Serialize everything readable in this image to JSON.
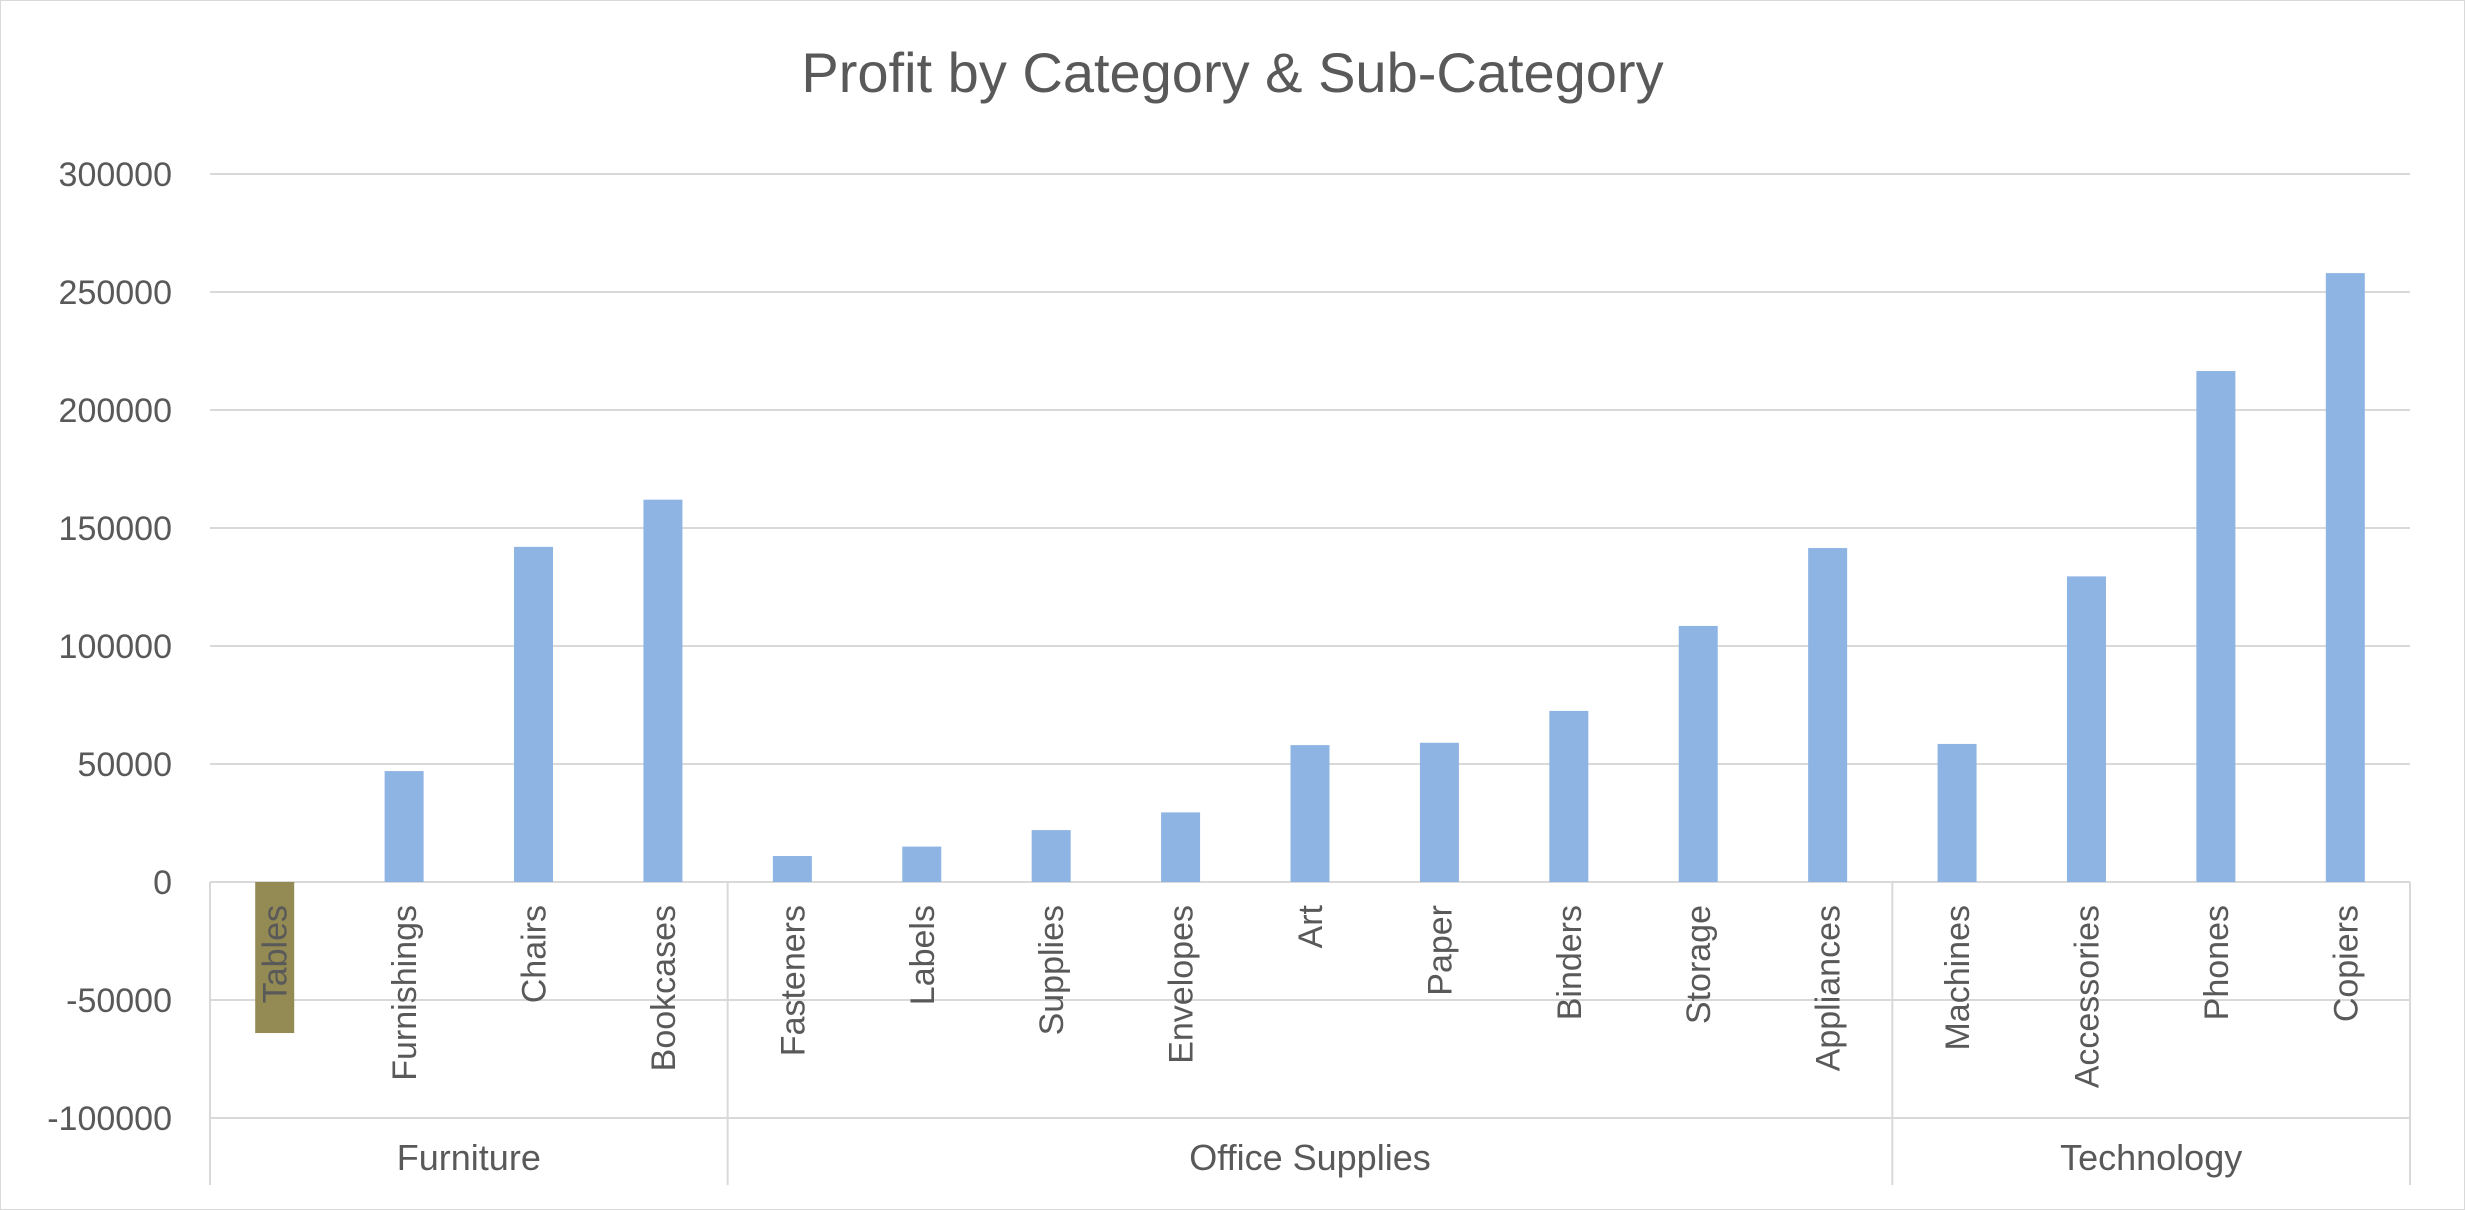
{
  "chart_data": {
    "type": "bar",
    "title": "Profit by Category & Sub-Category",
    "xlabel": "",
    "ylabel": "",
    "ylim": [
      -100000,
      300000
    ],
    "yticks": [
      300000,
      250000,
      200000,
      150000,
      100000,
      50000,
      0,
      -50000,
      -100000
    ],
    "grid": true,
    "legend": "none",
    "groups": [
      {
        "name": "Furniture",
        "categories": [
          "Tables",
          "Furnishings",
          "Chairs",
          "Bookcases"
        ]
      },
      {
        "name": "Office Supplies",
        "categories": [
          "Fasteners",
          "Labels",
          "Supplies",
          "Envelopes",
          "Art",
          "Paper",
          "Binders",
          "Storage",
          "Appliances"
        ]
      },
      {
        "name": "Technology",
        "categories": [
          "Machines",
          "Accessories",
          "Phones",
          "Copiers"
        ]
      }
    ],
    "categories": [
      "Tables",
      "Furnishings",
      "Chairs",
      "Bookcases",
      "Fasteners",
      "Labels",
      "Supplies",
      "Envelopes",
      "Art",
      "Paper",
      "Binders",
      "Storage",
      "Appliances",
      "Machines",
      "Accessories",
      "Phones",
      "Copiers"
    ],
    "values": [
      -64000,
      47000,
      142000,
      162000,
      11000,
      15000,
      22000,
      29500,
      58000,
      59000,
      72500,
      108500,
      141500,
      58500,
      129500,
      216500,
      258000
    ],
    "colors": {
      "positive": "#8eb4e3",
      "negative": "#948a54",
      "gridline": "#d9d9d9",
      "text": "#595959"
    }
  }
}
